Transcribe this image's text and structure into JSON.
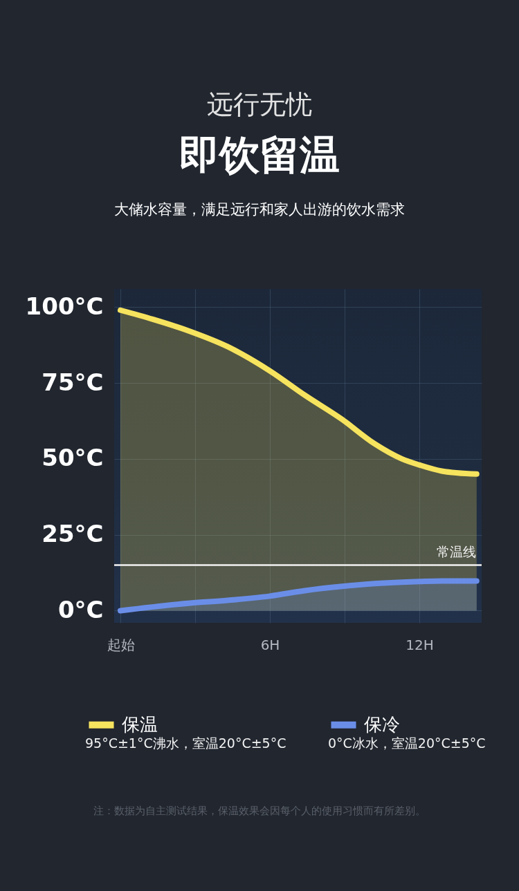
{
  "chart_data": {
    "type": "area",
    "title": "即饮留温",
    "subtitle": "大储水容量，满足远行和家人出游的饮水需求",
    "annotations": [
      "远行无忧",
      "95°C±1°C沸水，室温20°C±5°C",
      "0°C冰水，室温20°C±5°C",
      "注：数据为自主测试结果，保温效果会因每个人的使用习惯而有所差别。"
    ],
    "x": [
      0,
      1.3,
      2.8,
      4.3,
      6,
      7.4,
      8.9,
      10.2,
      11.3,
      12,
      12.9,
      14.3
    ],
    "series": [
      {
        "name": "保温",
        "color": "#f6e35e",
        "values": [
          99,
          96,
          92,
          87,
          79,
          71,
          63,
          55,
          50,
          48,
          46,
          45
        ]
      },
      {
        "name": "保冷",
        "color": "#6a8ee8",
        "x": [
          0,
          2.8,
          4.3,
          6,
          7.4,
          8.9,
          10.2,
          12,
          12.9,
          14.3
        ],
        "values": [
          0,
          2.5,
          3.4,
          4.8,
          6.6,
          8,
          8.9,
          9.6,
          9.8,
          9.8
        ]
      }
    ],
    "xlim": [
      -0.25,
      14.5
    ],
    "xticks": [
      {
        "value": 0,
        "label": "起始"
      },
      {
        "value": 3,
        "label": null
      },
      {
        "value": 6,
        "label": "6H"
      },
      {
        "value": 9,
        "label": null
      },
      {
        "value": 12,
        "label": "12H"
      }
    ],
    "ylim": [
      -4,
      106
    ],
    "yticks": [
      {
        "value": 0,
        "label": "0°C"
      },
      {
        "value": 25,
        "label": "25°C"
      },
      {
        "value": 50,
        "label": "50°C"
      },
      {
        "value": 75,
        "label": "75°C"
      },
      {
        "value": 100,
        "label": "100°C"
      }
    ],
    "ref_lines": [
      {
        "axis": "y",
        "value": 15,
        "label": "常温线",
        "color": "#f2f2f2"
      }
    ],
    "grid": true,
    "legend": "bottom"
  }
}
